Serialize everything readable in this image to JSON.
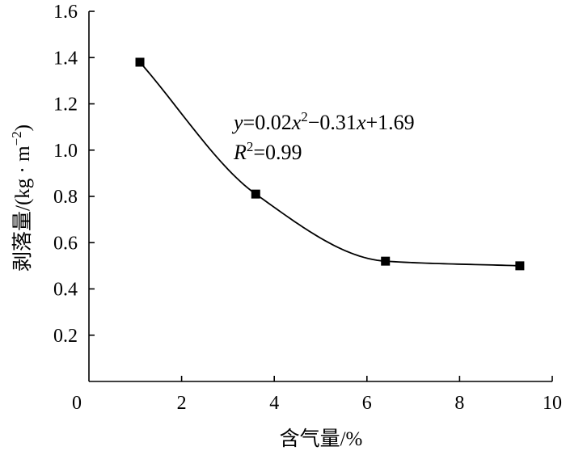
{
  "chart_data": {
    "type": "scatter",
    "xlabel": "含气量/%",
    "ylabel": "剥落量/(kg · m−2)",
    "ylabel_main": "剥落量/(kg · m",
    "ylabel_sup": "−2",
    "ylabel_end": ")",
    "xlim": [
      0,
      10
    ],
    "ylim": [
      0,
      1.6
    ],
    "x_ticks": [
      "0",
      "2",
      "4",
      "6",
      "8",
      "10"
    ],
    "y_ticks": [
      "0.2",
      "0.4",
      "0.6",
      "0.8",
      "1.0",
      "1.2",
      "1.4",
      "1.6"
    ],
    "grid": false,
    "series": [
      {
        "marker": "square",
        "color": "#000000",
        "x": [
          1.1,
          3.6,
          6.4,
          9.3
        ],
        "y": [
          1.38,
          0.81,
          0.52,
          0.5
        ]
      }
    ],
    "fit_curve": {
      "type": "quadratic",
      "a": 0.02,
      "b": -0.31,
      "c": 1.69
    },
    "annotation": {
      "equation": "y=0.02x2−0.31x+1.69",
      "r_squared": "R2=0.99",
      "eq_parts": {
        "y": "y",
        "a": "=0.02",
        "x1": "x",
        "sup1": "2",
        "b": "−0.31",
        "x2": "x",
        "c": "+1.69"
      },
      "r2_parts": {
        "r": "R",
        "sup": "2",
        "val": "=0.99"
      }
    }
  }
}
